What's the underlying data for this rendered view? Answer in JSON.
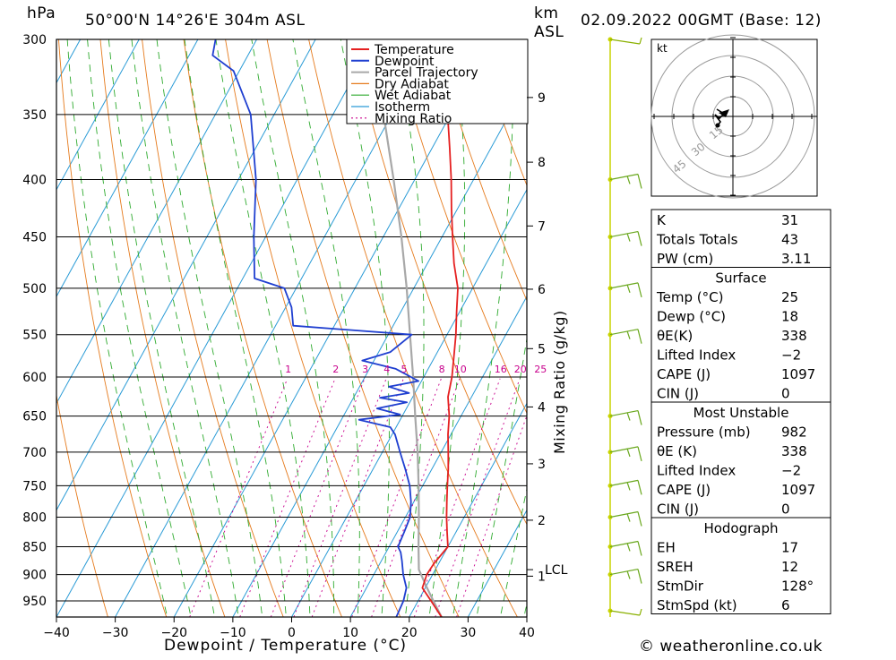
{
  "header": {
    "pressure_unit": "hPa",
    "location": "50°00'N  14°26'E  304m  ASL",
    "km_label": "km",
    "asl_label": "ASL",
    "datetime": "02.09.2022  00GMT  (Base: 12)"
  },
  "footer": {
    "credit": "© weatheronline.co.uk"
  },
  "hodograph": {
    "unit": "kt",
    "ring_labels": [
      "15",
      "30",
      "45"
    ]
  },
  "chart_data": {
    "type": "skew-t",
    "xlabel": "Dewpoint / Temperature (°C)",
    "mixing_label": "Mixing Ratio (g/kg)",
    "x_ticks": [
      -40,
      -30,
      -20,
      -10,
      0,
      10,
      20,
      30,
      40
    ],
    "x_tick_labels": [
      "−40",
      "−30",
      "−20",
      "−10",
      "0",
      "10",
      "20",
      "30",
      "40"
    ],
    "pressure_levels": [
      300,
      350,
      400,
      450,
      500,
      550,
      600,
      650,
      700,
      750,
      800,
      850,
      900,
      950
    ],
    "pressure_range": [
      300,
      982
    ],
    "km_ticks": [
      {
        "p": 903,
        "label": "1"
      },
      {
        "p": 805,
        "label": "2"
      },
      {
        "p": 717,
        "label": "3"
      },
      {
        "p": 638,
        "label": "4"
      },
      {
        "p": 566,
        "label": "5"
      },
      {
        "p": 501,
        "label": "6"
      },
      {
        "p": 440,
        "label": "7"
      },
      {
        "p": 386,
        "label": "8"
      },
      {
        "p": 338,
        "label": "9"
      }
    ],
    "lcl": {
      "p": 891,
      "label": "LCL"
    },
    "mixing_ratios": [
      1,
      2,
      3,
      4,
      5,
      8,
      10,
      16,
      20,
      25
    ],
    "legend": [
      "Temperature",
      "Dewpoint",
      "Parcel Trajectory",
      "Dry Adiabat",
      "Wet Adiabat",
      "Isotherm",
      "Mixing Ratio"
    ],
    "colors": {
      "temperature": "#e52020",
      "dewpoint": "#1f3fd0",
      "parcel": "#a8a8a8",
      "dry": "#e57a1c",
      "wet": "#2eaa2e",
      "isotherm": "#2a9bd6",
      "mixing": "#c8008c"
    },
    "temperature": [
      [
        982,
        25.5
      ],
      [
        950,
        22.2
      ],
      [
        925,
        19.5
      ],
      [
        900,
        19.0
      ],
      [
        880,
        19.2
      ],
      [
        850,
        20.0
      ],
      [
        825,
        18.5
      ],
      [
        800,
        17.0
      ],
      [
        775,
        15.6
      ],
      [
        750,
        14.2
      ],
      [
        725,
        12.8
      ],
      [
        700,
        11.2
      ],
      [
        675,
        9.5
      ],
      [
        650,
        8.0
      ],
      [
        625,
        6.0
      ],
      [
        600,
        4.8
      ],
      [
        575,
        3.2
      ],
      [
        550,
        1.5
      ],
      [
        525,
        -0.5
      ],
      [
        500,
        -2.5
      ],
      [
        475,
        -5.5
      ],
      [
        450,
        -8.2
      ],
      [
        425,
        -11.0
      ],
      [
        400,
        -13.8
      ],
      [
        375,
        -17.0
      ],
      [
        350,
        -20.5
      ],
      [
        325,
        -24.5
      ],
      [
        300,
        -29.0
      ]
    ],
    "dewpoint": [
      [
        982,
        17.8
      ],
      [
        950,
        17.5
      ],
      [
        925,
        16.8
      ],
      [
        900,
        15.0
      ],
      [
        875,
        13.5
      ],
      [
        860,
        12.5
      ],
      [
        850,
        11.5
      ],
      [
        825,
        11.2
      ],
      [
        800,
        10.8
      ],
      [
        775,
        9.5
      ],
      [
        750,
        7.8
      ],
      [
        725,
        5.5
      ],
      [
        700,
        3.0
      ],
      [
        675,
        0.5
      ],
      [
        665,
        -1.0
      ],
      [
        655,
        -7.0
      ],
      [
        648,
        -0.5
      ],
      [
        640,
        -5.0
      ],
      [
        632,
        -0.5
      ],
      [
        626,
        -5.5
      ],
      [
        620,
        -1.0
      ],
      [
        612,
        -5.0
      ],
      [
        605,
        -0.5
      ],
      [
        590,
        -5.5
      ],
      [
        580,
        -12.0
      ],
      [
        570,
        -8.0
      ],
      [
        550,
        -6.0
      ],
      [
        540,
        -27.0
      ],
      [
        520,
        -29.0
      ],
      [
        500,
        -32.0
      ],
      [
        490,
        -38.0
      ],
      [
        450,
        -42.0
      ],
      [
        400,
        -47.0
      ],
      [
        350,
        -54.0
      ],
      [
        320,
        -61.0
      ],
      [
        310,
        -66.0
      ],
      [
        300,
        -67.0
      ]
    ],
    "parcel": [
      [
        982,
        25.5
      ],
      [
        950,
        22.6
      ],
      [
        925,
        20.3
      ],
      [
        891,
        17.2
      ],
      [
        850,
        15.0
      ],
      [
        800,
        12.3
      ],
      [
        750,
        9.3
      ],
      [
        700,
        6.0
      ],
      [
        650,
        2.2
      ],
      [
        600,
        -1.8
      ],
      [
        550,
        -6.3
      ],
      [
        500,
        -11.2
      ],
      [
        450,
        -16.9
      ],
      [
        400,
        -23.6
      ],
      [
        350,
        -31.4
      ],
      [
        300,
        -41.0
      ]
    ],
    "wind_levels": [
      300,
      400,
      450,
      500,
      550,
      650,
      700,
      750,
      800,
      850,
      900,
      982
    ],
    "indices": [
      {
        "label": "K",
        "value": "31"
      },
      {
        "label": "Totals Totals",
        "value": "43"
      },
      {
        "label": "PW (cm)",
        "value": "3.11"
      }
    ],
    "surface": {
      "title": "Surface",
      "rows": [
        {
          "label": "Temp (°C)",
          "value": "25"
        },
        {
          "label": "Dewp (°C)",
          "value": "18"
        },
        {
          "label": "θE(K)",
          "value": "338"
        },
        {
          "label": "Lifted Index",
          "value": "−2"
        },
        {
          "label": "CAPE (J)",
          "value": "1097"
        },
        {
          "label": "CIN (J)",
          "value": "0"
        }
      ]
    },
    "most_unstable": {
      "title": "Most Unstable",
      "rows": [
        {
          "label": "Pressure (mb)",
          "value": "982"
        },
        {
          "label": "θE (K)",
          "value": "338"
        },
        {
          "label": "Lifted Index",
          "value": "−2"
        },
        {
          "label": "CAPE (J)",
          "value": "1097"
        },
        {
          "label": "CIN (J)",
          "value": "0"
        }
      ]
    },
    "hodograph_stats": {
      "title": "Hodograph",
      "rows": [
        {
          "label": "EH",
          "value": "17"
        },
        {
          "label": "SREH",
          "value": "12"
        },
        {
          "label": "StmDir",
          "value": "128°"
        },
        {
          "label": "StmSpd (kt)",
          "value": "6"
        }
      ]
    }
  }
}
